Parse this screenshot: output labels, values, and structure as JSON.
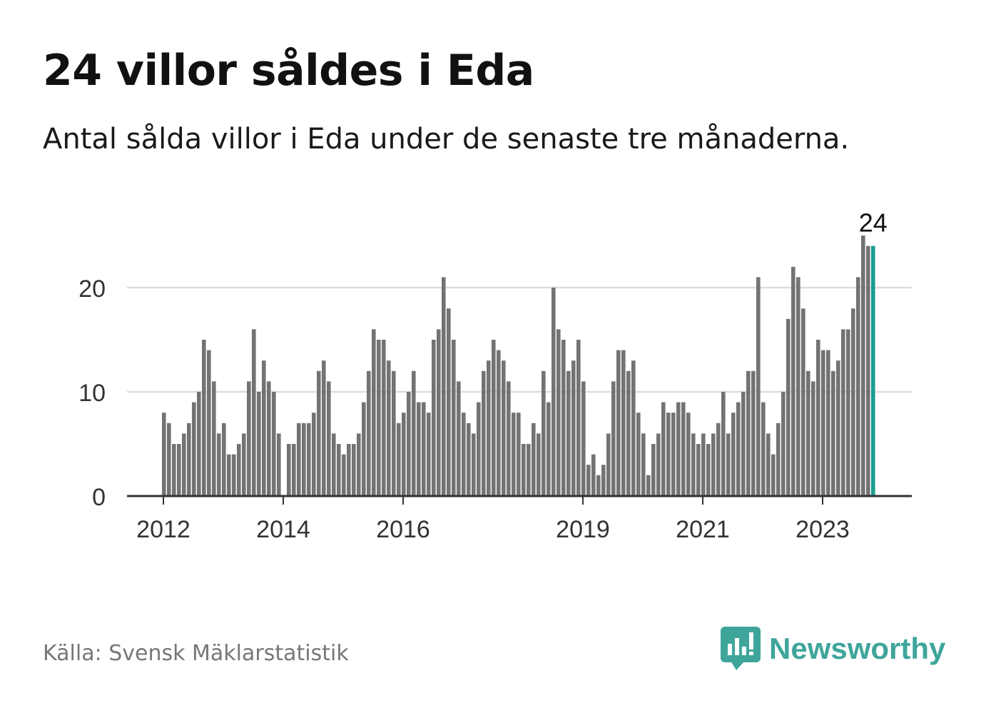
{
  "title": "24 villor såldes i Eda",
  "subtitle": "Antal sålda villor i Eda under de senaste tre månaderna.",
  "source": "Källa: Svensk Mäklarstatistik",
  "brand": {
    "name": "Newsworthy",
    "color": "#3fa59b",
    "icon": "bar-chart-speech-bubble-icon"
  },
  "colors": {
    "bar": "#737373",
    "highlight": "#1a9e8f",
    "grid": "#dddddd",
    "axis": "#333333"
  },
  "chart_data": {
    "type": "bar",
    "ylim": [
      0,
      25
    ],
    "yticks": [
      0,
      10,
      20
    ],
    "xtick_labels": [
      {
        "label": "2012",
        "index": 0
      },
      {
        "label": "2014",
        "index": 24
      },
      {
        "label": "2016",
        "index": 48
      },
      {
        "label": "2019",
        "index": 84
      },
      {
        "label": "2021",
        "index": 108
      },
      {
        "label": "2023",
        "index": 132
      }
    ],
    "highlight_label": "24",
    "values": [
      8,
      7,
      5,
      5,
      6,
      7,
      9,
      10,
      15,
      14,
      11,
      6,
      7,
      4,
      4,
      5,
      6,
      11,
      16,
      10,
      13,
      11,
      10,
      6,
      0,
      5,
      5,
      7,
      7,
      7,
      8,
      12,
      13,
      11,
      6,
      5,
      4,
      5,
      5,
      6,
      9,
      12,
      16,
      15,
      15,
      13,
      12,
      7,
      8,
      10,
      12,
      9,
      9,
      8,
      15,
      16,
      21,
      18,
      15,
      11,
      8,
      7,
      6,
      9,
      12,
      13,
      15,
      14,
      13,
      11,
      8,
      8,
      5,
      5,
      7,
      6,
      12,
      9,
      20,
      16,
      15,
      12,
      13,
      15,
      11,
      3,
      4,
      2,
      3,
      6,
      11,
      14,
      14,
      12,
      13,
      8,
      6,
      2,
      5,
      6,
      9,
      8,
      8,
      9,
      9,
      8,
      6,
      5,
      6,
      5,
      6,
      7,
      10,
      6,
      8,
      9,
      10,
      12,
      12,
      21,
      9,
      6,
      4,
      7,
      10,
      17,
      22,
      21,
      18,
      12,
      11,
      15,
      14,
      14,
      12,
      13,
      16,
      16,
      18,
      21,
      25,
      24,
      24
    ]
  }
}
